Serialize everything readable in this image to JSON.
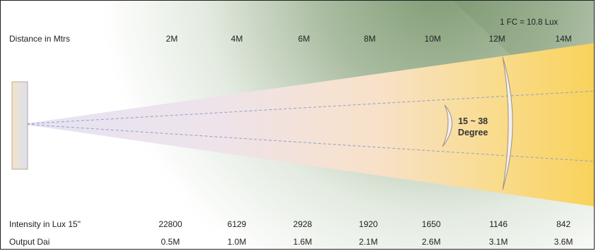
{
  "note": "1 FC = 10.8 Lux",
  "rows": {
    "distance": {
      "label": "Distance in Mtrs",
      "values": [
        "2M",
        "4M",
        "6M",
        "8M",
        "10M",
        "12M",
        "14M"
      ]
    },
    "intensity": {
      "label": "Intensity in Lux 15\"",
      "values": [
        "22800",
        "6129",
        "2928",
        "1920",
        "1650",
        "1146",
        "842"
      ]
    },
    "output": {
      "label": "Output Dai",
      "values": [
        "0.5M",
        "1.0M",
        "1.6M",
        "2.1M",
        "2.6M",
        "3.1M",
        "3.6M"
      ]
    }
  },
  "angle": {
    "line1": "15 ~ 38",
    "line2": "Degree"
  },
  "colors": {
    "beam_near": "#e6e3f3",
    "beam_far": "#f9d25a",
    "background_top_right": "#7f9a72",
    "fixture": "#f2d9b0"
  }
}
